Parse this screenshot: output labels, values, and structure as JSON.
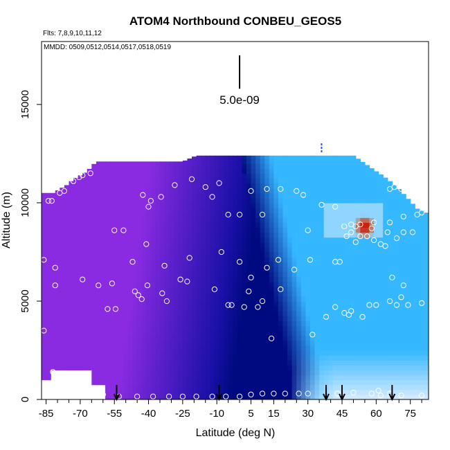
{
  "chart_data": {
    "type": "heatmap",
    "title": "ATOM4 Northbound CONBEU_GEOS5",
    "flights_note": "Flts: 7,8,9,10,11,12",
    "dates_note": "MMDD: 0509,0512,0514,0517,0518,0519",
    "xlabel": "Latitude (deg N)",
    "ylabel": "Altitude (m)",
    "xlim": [
      -87,
      83
    ],
    "ylim": [
      0,
      18200
    ],
    "x_ticks": [
      -85,
      -70,
      -55,
      -40,
      -25,
      -10,
      5,
      15,
      30,
      45,
      60,
      75
    ],
    "x_minor_ticks": [
      -80,
      -75,
      -65,
      -60,
      -50,
      -45,
      -35,
      -30,
      -20,
      -15,
      -5,
      0,
      10,
      20,
      25,
      35,
      40,
      50,
      55,
      65,
      70,
      80
    ],
    "y_ticks": [
      0,
      5000,
      10000,
      15000
    ],
    "scale_bar_label": "5.0e-09",
    "scale_bar": {
      "x": 0,
      "y_bottom": 15800,
      "y_top": 17500
    },
    "colors": {
      "low": "#8a2be2",
      "mid": "#1a10a8",
      "core": "#000a80",
      "high_light": "#35b8ff",
      "very_light": "#d8ecff",
      "peak_yellow": "#ffe200",
      "peak_red": "#c80000"
    },
    "profile_arrows_lat": [
      -54,
      -9,
      38,
      45,
      67
    ],
    "top_mark_lat": 36,
    "envelope": [
      [
        -86,
        0,
        10500
      ],
      [
        -82,
        0,
        10500
      ],
      [
        -79,
        0,
        10700
      ],
      [
        -76,
        0,
        10900
      ],
      [
        -73,
        0,
        11200
      ],
      [
        -70,
        0,
        11400
      ],
      [
        -67,
        0,
        11600
      ],
      [
        -63,
        0,
        12100
      ],
      [
        -58,
        0,
        12100
      ],
      [
        -47,
        0,
        12100
      ],
      [
        -36,
        0,
        12100
      ],
      [
        -25,
        0,
        12100
      ],
      [
        -19,
        0,
        12400
      ],
      [
        -10,
        0,
        12400
      ],
      [
        0,
        0,
        12400
      ],
      [
        10,
        0,
        12400
      ],
      [
        20,
        0,
        12400
      ],
      [
        30,
        0,
        12400
      ],
      [
        40,
        0,
        12400
      ],
      [
        50,
        0,
        12400
      ],
      [
        55,
        0,
        12000
      ],
      [
        60,
        0,
        11600
      ],
      [
        65,
        0,
        11200
      ],
      [
        70,
        0,
        10700
      ],
      [
        74,
        0,
        10200
      ],
      [
        78,
        0,
        9700
      ],
      [
        82,
        0,
        9500
      ]
    ],
    "plume": {
      "lat_center": 55,
      "alt_center": 8800,
      "lat_halfwidth": 5,
      "alt_halfwidth": 600
    },
    "observation_points": [
      [
        -84,
        10100
      ],
      [
        -82.5,
        10100
      ],
      [
        -79,
        10500
      ],
      [
        -77,
        10600
      ],
      [
        -73,
        11100
      ],
      [
        -70.5,
        11300
      ],
      [
        -69,
        11400
      ],
      [
        -65.5,
        11500
      ],
      [
        -42.5,
        10400
      ],
      [
        -40,
        9800
      ],
      [
        -39,
        10100
      ],
      [
        -34.5,
        10300
      ],
      [
        -28.5,
        10900
      ],
      [
        -21,
        11200
      ],
      [
        -15,
        10800
      ],
      [
        -12,
        10300
      ],
      [
        -9,
        11000
      ],
      [
        -5,
        9400
      ],
      [
        0,
        9400
      ],
      [
        5,
        10600
      ],
      [
        10,
        9400
      ],
      [
        12,
        10700
      ],
      [
        18,
        10700
      ],
      [
        25,
        10600
      ],
      [
        28,
        10400
      ],
      [
        -55,
        8600
      ],
      [
        -51,
        8600
      ],
      [
        -47,
        7000
      ],
      [
        -41,
        7900
      ],
      [
        -33,
        6800
      ],
      [
        -22,
        7200
      ],
      [
        -8,
        7500
      ],
      [
        0,
        7000
      ],
      [
        5,
        6200
      ],
      [
        12,
        6700
      ],
      [
        17,
        7100
      ],
      [
        24,
        6600
      ],
      [
        31,
        7100
      ],
      [
        -86,
        7100
      ],
      [
        -81,
        6700
      ],
      [
        -69,
        6100
      ],
      [
        -56,
        5900
      ],
      [
        -46,
        5500
      ],
      [
        -44.5,
        5300
      ],
      [
        -34,
        5400
      ],
      [
        -32,
        5000
      ],
      [
        -26,
        6100
      ],
      [
        -23,
        6000
      ],
      [
        -11,
        5600
      ],
      [
        4,
        5500
      ],
      [
        10,
        5000
      ],
      [
        18,
        5600
      ],
      [
        -86,
        3500
      ],
      [
        -81,
        5800
      ],
      [
        -62,
        5800
      ],
      [
        -58,
        4600
      ],
      [
        -54.5,
        4600
      ],
      [
        -43,
        5100
      ],
      [
        -40.5,
        5800
      ],
      [
        -5,
        4800
      ],
      [
        -3.5,
        4800
      ],
      [
        2,
        4700
      ],
      [
        8,
        4700
      ],
      [
        14,
        3100
      ],
      [
        32,
        3300
      ],
      [
        -82,
        1400
      ],
      [
        -80,
        1300
      ],
      [
        -65,
        300
      ],
      [
        -60,
        250
      ],
      [
        -53,
        150
      ],
      [
        -45,
        150
      ],
      [
        -38,
        150
      ],
      [
        -31,
        150
      ],
      [
        -25,
        150
      ],
      [
        -19,
        150
      ],
      [
        -12,
        150
      ],
      [
        -6,
        150
      ],
      [
        0,
        150
      ],
      [
        5,
        250
      ],
      [
        10,
        300
      ],
      [
        15,
        300
      ],
      [
        20,
        300
      ],
      [
        26,
        300
      ],
      [
        30,
        300
      ],
      [
        43,
        300
      ],
      [
        50,
        350
      ],
      [
        58,
        300
      ],
      [
        61,
        450
      ],
      [
        62,
        200
      ],
      [
        66,
        300
      ],
      [
        71,
        200
      ],
      [
        80,
        200
      ],
      [
        38,
        4200
      ],
      [
        42,
        4700
      ],
      [
        46,
        4400
      ],
      [
        48,
        4300
      ],
      [
        49,
        4500
      ],
      [
        54,
        4200
      ],
      [
        57,
        4800
      ],
      [
        60,
        4800
      ],
      [
        66,
        5000
      ],
      [
        69,
        4800
      ],
      [
        71,
        5200
      ],
      [
        74,
        4800
      ],
      [
        80,
        4900
      ],
      [
        44,
        7000
      ],
      [
        47,
        8300
      ],
      [
        49,
        8500
      ],
      [
        51,
        8000
      ],
      [
        53,
        8300
      ],
      [
        56,
        8300
      ],
      [
        59,
        8100
      ],
      [
        62,
        7900
      ],
      [
        65,
        8500
      ],
      [
        69,
        8200
      ],
      [
        72,
        8500
      ],
      [
        76,
        8500
      ],
      [
        58,
        8700
      ],
      [
        59,
        9000
      ],
      [
        66,
        9000
      ],
      [
        72,
        9300
      ],
      [
        78,
        9400
      ],
      [
        80,
        9500
      ],
      [
        49,
        8900
      ],
      [
        46,
        8800
      ],
      [
        53,
        8900
      ],
      [
        51,
        8800
      ],
      [
        30,
        8600
      ],
      [
        64,
        7800
      ],
      [
        42,
        7000
      ],
      [
        67,
        6200
      ],
      [
        72,
        5800
      ],
      [
        66,
        10700
      ],
      [
        68,
        10800
      ],
      [
        71,
        10700
      ],
      [
        75,
        11000
      ],
      [
        36,
        9900
      ],
      [
        42,
        9800
      ]
    ]
  }
}
